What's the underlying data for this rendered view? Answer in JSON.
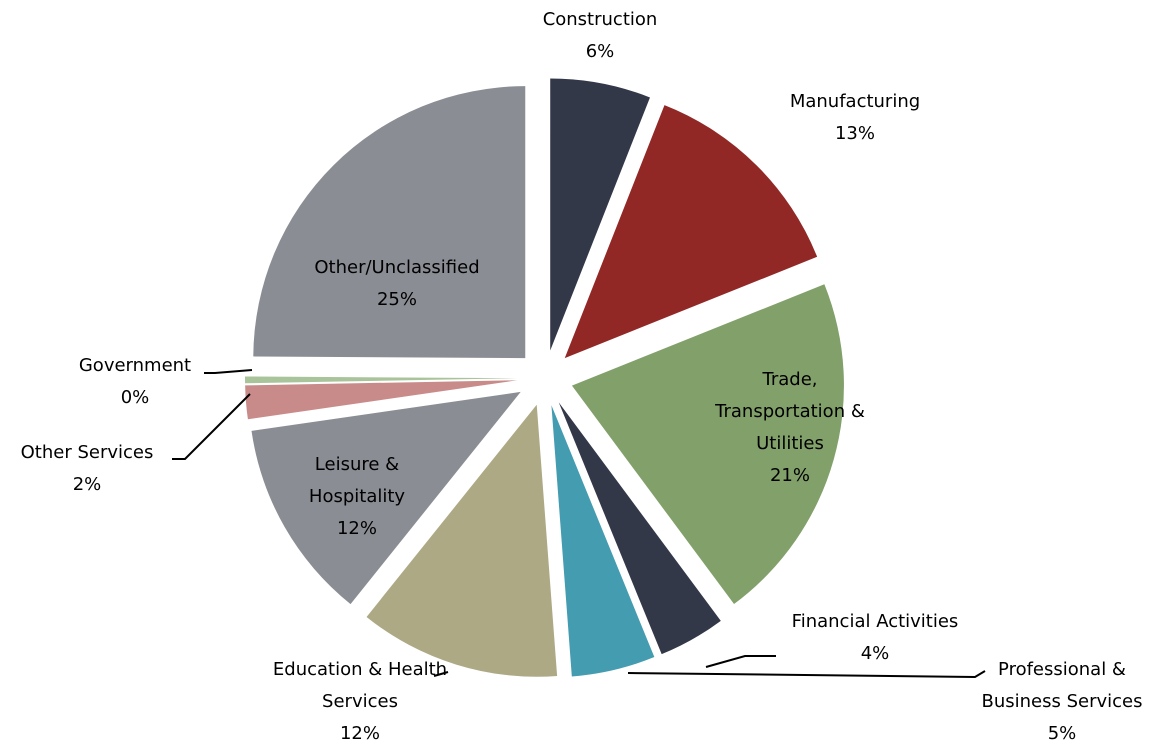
{
  "chart_data": {
    "type": "pie",
    "categories": [
      "Construction",
      "Manufacturing",
      "Trade, Transportation & Utilities",
      "Financial Activities",
      "Professional & Business Services",
      "Education & Health Services",
      "Leisure & Hospitality",
      "Other Services",
      "Government",
      "Other/Unclassified"
    ],
    "values": [
      6,
      13,
      21,
      4,
      5,
      12,
      12,
      2,
      0.4,
      25
    ],
    "value_labels": [
      "6%",
      "13%",
      "21%",
      "4%",
      "5%",
      "12%",
      "12%",
      "2%",
      "0%",
      "25%"
    ],
    "colors": [
      "#333849",
      "#922826",
      "#82a06a",
      "#333849",
      "#449cb0",
      "#ada984",
      "#8a8d93",
      "#c98b8a",
      "#a9c49a",
      "#8a8d93"
    ]
  }
}
